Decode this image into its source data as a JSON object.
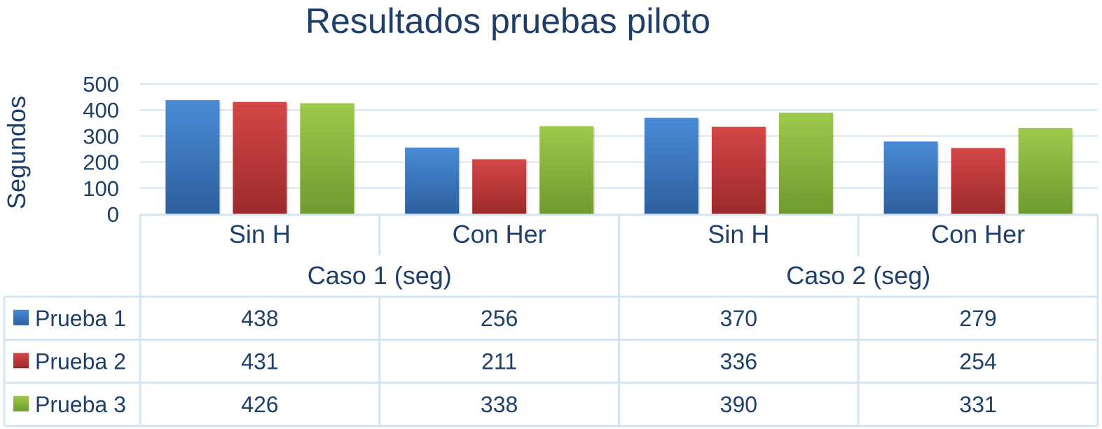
{
  "chart_data": {
    "type": "bar",
    "title": "Resultados pruebas piloto",
    "ylabel": "Segundos",
    "ylim": [
      0,
      500
    ],
    "yticks": [
      0,
      100,
      200,
      300,
      400,
      500
    ],
    "grid": true,
    "legend": "data-table",
    "groups": [
      {
        "label": "Caso 1 (seg)",
        "categories": [
          "Sin H",
          "Con Her"
        ]
      },
      {
        "label": "Caso 2 (seg)",
        "categories": [
          "Sin H",
          "Con Her"
        ]
      }
    ],
    "categories": [
      "Sin H",
      "Con Her",
      "Sin H",
      "Con Her"
    ],
    "series": [
      {
        "name": "Prueba 1",
        "color": "#3a78c3",
        "values": [
          438,
          256,
          370,
          279
        ]
      },
      {
        "name": "Prueba 2",
        "color": "#c0393b",
        "values": [
          431,
          211,
          336,
          254
        ]
      },
      {
        "name": "Prueba 3",
        "color": "#8cb83f",
        "values": [
          426,
          338,
          390,
          331
        ]
      }
    ]
  }
}
